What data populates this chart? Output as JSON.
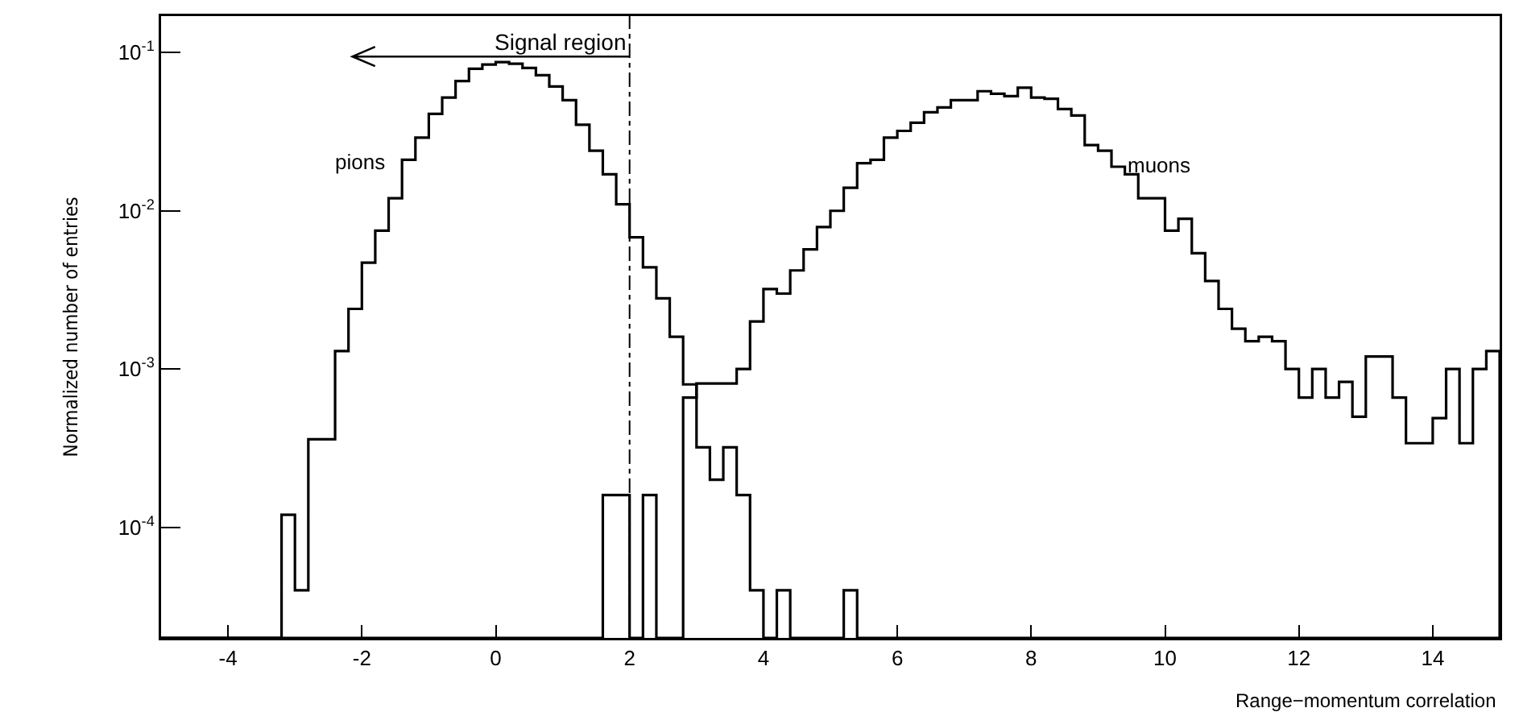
{
  "chart_data": {
    "type": "histogram",
    "xlabel": "Range−momentum correlation",
    "ylabel": "Normalized number of entries",
    "bins": [
      -5,
      -4.8,
      -4.6,
      -4.4,
      -4.2,
      -4,
      -3.8,
      -3.6,
      -3.4,
      -3.2,
      -3,
      -2.8,
      -2.6,
      -2.4,
      -2.2,
      -2,
      -1.8,
      -1.6,
      -1.4,
      -1.2,
      -1,
      -0.8,
      -0.6,
      -0.4,
      -0.2,
      0,
      0.2,
      0.4,
      0.6,
      0.8,
      1,
      1.2,
      1.4,
      1.6,
      1.8,
      2,
      2.2,
      2.4,
      2.6,
      2.8,
      3,
      3.2,
      3.4,
      3.6,
      3.8,
      4,
      4.2,
      4.4,
      4.6,
      4.8,
      5,
      5.2,
      5.4,
      5.6,
      5.8,
      6,
      6.2,
      6.4,
      6.6,
      6.8,
      7,
      7.2,
      7.4,
      7.6,
      7.8,
      8,
      8.2,
      8.4,
      8.6,
      8.8,
      9,
      9.2,
      9.4,
      9.6,
      9.8,
      10,
      10.2,
      10.4,
      10.6,
      10.8,
      11,
      11.2,
      11.4,
      11.6,
      11.8,
      12,
      12.2,
      12.4,
      12.6,
      12.8,
      13,
      13.2,
      13.4,
      13.6,
      13.8,
      14,
      14.2,
      14.4,
      14.6,
      14.8,
      15
    ],
    "series": [
      {
        "name": "pions",
        "color": "#000000",
        "values": [
          null,
          null,
          null,
          null,
          null,
          null,
          null,
          null,
          null,
          0.00012,
          4e-05,
          0.00036,
          0.00036,
          0.0013,
          0.0024,
          0.0047,
          0.0075,
          0.012,
          0.021,
          0.029,
          0.041,
          0.052,
          0.066,
          0.079,
          0.084,
          0.087,
          0.085,
          0.08,
          0.072,
          0.061,
          0.05,
          0.035,
          0.024,
          0.017,
          0.011,
          0.0068,
          0.0044,
          0.0028,
          0.0016,
          0.0008,
          0.00032,
          0.0002,
          0.00032,
          0.00016,
          4e-05,
          null,
          4e-05,
          null,
          null,
          null,
          null,
          4e-05,
          null,
          null,
          null,
          null,
          null,
          null,
          null,
          null,
          null,
          null,
          null,
          null,
          null,
          null,
          null,
          null,
          null,
          null,
          null,
          null,
          null,
          null,
          null,
          null,
          null,
          null,
          null,
          null,
          null,
          null,
          null,
          null,
          null,
          null,
          null,
          null,
          null,
          null,
          null,
          null,
          null,
          null,
          null,
          null,
          null,
          null,
          null,
          null
        ]
      },
      {
        "name": "muons",
        "color": "#000000",
        "values": [
          null,
          null,
          null,
          null,
          null,
          null,
          null,
          null,
          null,
          null,
          null,
          null,
          null,
          null,
          null,
          null,
          null,
          null,
          null,
          null,
          null,
          null,
          null,
          null,
          null,
          null,
          null,
          null,
          null,
          null,
          null,
          null,
          null,
          0.00016,
          0.00016,
          null,
          0.00016,
          null,
          null,
          0.00066,
          0.00081,
          0.00081,
          0.00081,
          0.001,
          0.002,
          0.0032,
          0.003,
          0.0042,
          0.0057,
          0.0079,
          0.01,
          0.014,
          0.02,
          0.021,
          0.029,
          0.032,
          0.036,
          0.042,
          0.045,
          0.05,
          0.05,
          0.057,
          0.055,
          0.053,
          0.06,
          0.052,
          0.051,
          0.044,
          0.04,
          0.026,
          0.024,
          0.019,
          0.017,
          0.012,
          0.012,
          0.0075,
          0.0089,
          0.0054,
          0.0036,
          0.0024,
          0.0018,
          0.0015,
          0.0016,
          0.0015,
          0.001,
          0.00066,
          0.001,
          0.00066,
          0.00083,
          0.0005,
          0.0012,
          0.0012,
          0.00066,
          0.00034,
          0.00034,
          0.00049,
          0.001,
          0.00034,
          0.001,
          0.0013
        ]
      }
    ],
    "xlim": [
      -5,
      15
    ],
    "xticks": [
      -4,
      -2,
      0,
      2,
      4,
      6,
      8,
      10,
      12,
      14
    ],
    "ylim": [
      2e-05,
      0.17
    ],
    "yticks": [
      {
        "value": 0.0001,
        "label": "10$^{-4}$"
      },
      {
        "value": 0.001,
        "label": "10$^{-3}$"
      },
      {
        "value": 0.01,
        "label": "10$^{-2}$"
      },
      {
        "value": 0.1,
        "label": "10$^{-1}$"
      }
    ],
    "log": "y",
    "grid": false,
    "legend": false,
    "ref_lines": [
      {
        "axis": "x",
        "value": 2,
        "label": "Signal region",
        "line_style": "dashed",
        "color": "#000000"
      }
    ]
  }
}
